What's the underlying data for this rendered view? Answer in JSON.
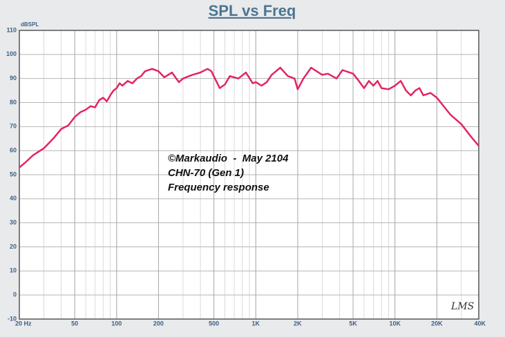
{
  "chart_data": {
    "type": "line",
    "title": "SPL vs Freq",
    "y_label": "dBSPL",
    "annotations": [
      "©Markaudio  -  May 2104",
      "CHN-70 (Gen 1)",
      "Frequency response"
    ],
    "watermark": "LMS",
    "x": [
      20,
      22,
      25,
      30,
      35,
      40,
      45,
      50,
      55,
      60,
      65,
      70,
      75,
      80,
      85,
      90,
      95,
      100,
      105,
      110,
      120,
      130,
      140,
      150,
      160,
      180,
      200,
      220,
      250,
      280,
      300,
      350,
      400,
      450,
      480,
      550,
      600,
      650,
      750,
      850,
      950,
      1000,
      1100,
      1200,
      1300,
      1500,
      1700,
      1900,
      2000,
      2200,
      2500,
      3000,
      3300,
      3800,
      4200,
      5000,
      5500,
      6000,
      6500,
      7000,
      7500,
      8000,
      9000,
      10000,
      11000,
      12000,
      13000,
      14000,
      15000,
      16000,
      18000,
      20000,
      22000,
      25000,
      30000,
      35000,
      40000
    ],
    "values": [
      53,
      55,
      58,
      61,
      65,
      69,
      70.5,
      74,
      76,
      77,
      78.5,
      78,
      81,
      82,
      80.5,
      83,
      85,
      86,
      88,
      87,
      89,
      88,
      90,
      91,
      93,
      94,
      93,
      90.5,
      92.5,
      88.5,
      90,
      91.5,
      92.5,
      94,
      93,
      86,
      87.5,
      91,
      90,
      92.5,
      88,
      88.5,
      87,
      88.5,
      91.5,
      94.5,
      91,
      90,
      85.5,
      90,
      94.5,
      91.5,
      92,
      90,
      93.5,
      92,
      89,
      86,
      89,
      87,
      89,
      86,
      85.5,
      87,
      89,
      85,
      83,
      85,
      86,
      83,
      84,
      82,
      79,
      75,
      71,
      66,
      62
    ],
    "color": "#e2255f",
    "log_x": true,
    "grid": true,
    "xlim": [
      20,
      40000
    ],
    "xticks": [
      {
        "value": 20,
        "label": "20 Hz"
      },
      50,
      100,
      200,
      500,
      {
        "value": 1000,
        "label": "1K"
      },
      {
        "value": 2000,
        "label": "2K"
      },
      {
        "value": 5000,
        "label": "5K"
      },
      {
        "value": 10000,
        "label": "10K"
      },
      {
        "value": 20000,
        "label": "20K"
      },
      {
        "value": 40000,
        "label": "40K"
      }
    ],
    "ylim": [
      -10,
      110
    ],
    "yticks": [
      -10,
      0,
      10,
      20,
      30,
      40,
      50,
      60,
      70,
      80,
      90,
      100,
      110
    ]
  }
}
